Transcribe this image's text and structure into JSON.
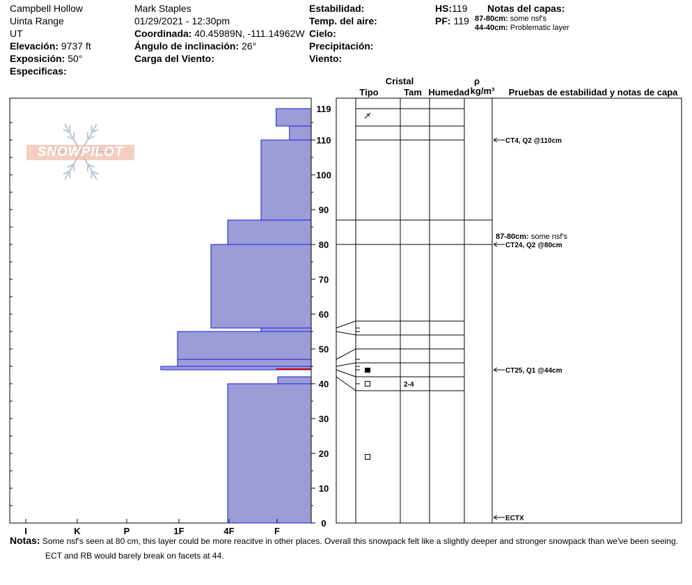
{
  "header": {
    "location": "Campbell Hollow",
    "range": "Uinta Range",
    "state": "UT",
    "elevation_label": "Elevación:",
    "elevation_value": "9737 ft",
    "aspect_label": "Exposición:",
    "aspect_value": "50°",
    "specifics_label": "Especificas:",
    "observer": "Mark Staples",
    "datetime": "01/29/2021 - 12:30pm",
    "coord_label": "Coordinada:",
    "coord_value": "40.45989N, -111.14962W",
    "slope_label": "Ángulo de inclinación:",
    "slope_value": "26°",
    "wind_load_label": "Carga del Viento:",
    "stability_label": "Estabilidad:",
    "air_temp_label": "Temp. del aire:",
    "sky_label": "Cielo:",
    "precip_label": "Precipitación:",
    "wind_label": "Viento:",
    "hs_label": "HS:",
    "hs_value": "119",
    "pf_label": "PF:",
    "pf_value": "119",
    "layer_notes_label": "Notas del capas:",
    "layer_notes": [
      {
        "range": "87-80cm:",
        "text": "some nsf's"
      },
      {
        "range": "44-40cm:",
        "text": "Problematic layer"
      }
    ]
  },
  "logo_text": "SNOWPILOT",
  "colors": {
    "hardness_fill": "#9c9cd6",
    "hardness_stroke": "#1a1ae6",
    "weak_layer": "#cc0000"
  },
  "chart_data": {
    "type": "snow_profile",
    "y_range": [
      0,
      120
    ],
    "y_ticks": [
      0,
      10,
      20,
      30,
      40,
      50,
      60,
      70,
      80,
      90,
      100,
      110,
      119
    ],
    "hardness_axis": [
      "I",
      "K",
      "P",
      "1F",
      "4F",
      "F"
    ],
    "column_headers": {
      "crystal": "Cristal",
      "type": "Tipo",
      "size": "Tam",
      "moisture": "Humedad",
      "rho": "ρ",
      "density": "kg/m³",
      "tests": "Pruebas de estabilidad y notas de capa"
    },
    "hardness_layers": [
      {
        "top": 119,
        "bottom": 114,
        "hardness": 2.1
      },
      {
        "top": 114,
        "bottom": 110,
        "hardness": 1.3
      },
      {
        "top": 110,
        "bottom": 87,
        "hardness": 3.0
      },
      {
        "top": 87,
        "bottom": 80,
        "hardness": 5.0
      },
      {
        "top": 80,
        "bottom": 56,
        "hardness": 6.0
      },
      {
        "top": 56,
        "bottom": 55,
        "hardness": 3.0
      },
      {
        "top": 55,
        "bottom": 47,
        "hardness": 8.0
      },
      {
        "top": 47,
        "bottom": 45,
        "hardness": 8.0
      },
      {
        "top": 45,
        "bottom": 44,
        "hardness": 9.0
      },
      {
        "top": 42,
        "bottom": 40,
        "hardness": 2.0
      },
      {
        "top": 40,
        "bottom": 0,
        "hardness": 5.0
      }
    ],
    "layer_boundaries": [
      119,
      114,
      110,
      87,
      80,
      58,
      54,
      50,
      46,
      42,
      38
    ],
    "boundary_ticks": [
      119,
      114,
      110,
      87,
      80,
      56,
      55,
      47,
      45,
      44,
      42,
      40
    ],
    "crystals": [
      {
        "depth": 117,
        "symbol": "decomposing"
      },
      {
        "depth": 44,
        "symbol": "filled-square"
      },
      {
        "depth": 40,
        "symbol": "open-square",
        "size": "2-4"
      },
      {
        "depth": 19,
        "symbol": "open-square"
      }
    ],
    "tests": [
      {
        "depth": 110,
        "label": "CT4, Q2 @110cm"
      },
      {
        "depth": 80,
        "label": "CT24, Q2 @80cm",
        "note_range": "87-80cm:",
        "note_text": "some nsf's"
      },
      {
        "depth": 44,
        "label": "CT25, Q1 @44cm"
      },
      {
        "depth": 0,
        "label": "ECTX"
      }
    ]
  },
  "notes": {
    "label": "Notas:",
    "line1": "Some nsf's seen at 80 cm, this layer could be more reacitve in other places. Overall this snowpack felt like a slightly deeper and stronger snowpack than we've been seeing.",
    "line2": "ECT and RB would barely break on facets at 44."
  }
}
